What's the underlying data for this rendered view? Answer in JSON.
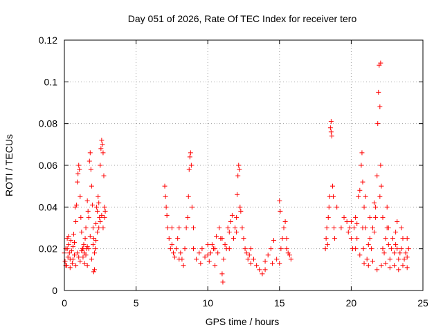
{
  "chart_data": {
    "type": "scatter",
    "title": "Day 051 of 2026, Rate Of TEC Index for receiver tero",
    "xlabel": "GPS time / hours",
    "ylabel": "ROTI / TECUs",
    "xlim": [
      0,
      25
    ],
    "ylim": [
      0,
      0.12
    ],
    "x_ticks": [
      "0",
      "5",
      "10",
      "15",
      "20",
      "25"
    ],
    "y_ticks": [
      "0",
      "0.02",
      "0.04",
      "0.06",
      "0.08",
      "0.1",
      "0.12"
    ],
    "grid": true,
    "legend": "none",
    "marker": "+",
    "color": "#ff0000",
    "series": [
      {
        "values": [
          [
            0.0,
            0.018
          ],
          [
            0.05,
            0.014
          ],
          [
            0.1,
            0.02
          ],
          [
            0.15,
            0.012
          ],
          [
            0.2,
            0.025
          ],
          [
            0.25,
            0.016
          ],
          [
            0.3,
            0.022
          ],
          [
            0.35,
            0.018
          ],
          [
            0.4,
            0.015
          ],
          [
            0.45,
            0.024
          ],
          [
            0.5,
            0.019
          ],
          [
            0.55,
            0.013
          ],
          [
            0.6,
            0.021
          ],
          [
            0.65,
            0.027
          ],
          [
            0.7,
            0.017
          ],
          [
            0.75,
            0.04
          ],
          [
            0.8,
            0.033
          ],
          [
            0.85,
            0.041
          ],
          [
            0.9,
            0.052
          ],
          [
            0.95,
            0.056
          ],
          [
            1.0,
            0.06
          ],
          [
            1.05,
            0.058
          ],
          [
            1.1,
            0.045
          ],
          [
            1.15,
            0.035
          ],
          [
            1.2,
            0.028
          ],
          [
            1.25,
            0.02
          ],
          [
            1.3,
            0.016
          ],
          [
            1.35,
            0.022
          ],
          [
            1.4,
            0.018
          ],
          [
            1.45,
            0.025
          ],
          [
            1.5,
            0.03
          ],
          [
            1.55,
            0.02
          ],
          [
            1.6,
            0.043
          ],
          [
            1.65,
            0.038
          ],
          [
            1.7,
            0.035
          ],
          [
            1.75,
            0.062
          ],
          [
            1.8,
            0.066
          ],
          [
            1.85,
            0.058
          ],
          [
            1.9,
            0.05
          ],
          [
            1.95,
            0.041
          ],
          [
            2.0,
            0.03
          ],
          [
            2.05,
            0.025
          ],
          [
            2.1,
            0.01
          ],
          [
            2.15,
            0.02
          ],
          [
            2.2,
            0.032
          ],
          [
            2.25,
            0.04
          ],
          [
            2.3,
            0.038
          ],
          [
            2.35,
            0.045
          ],
          [
            2.4,
            0.042
          ],
          [
            2.45,
            0.035
          ],
          [
            2.5,
            0.06
          ],
          [
            2.55,
            0.068
          ],
          [
            2.6,
            0.072
          ],
          [
            2.65,
            0.07
          ],
          [
            2.7,
            0.066
          ],
          [
            2.75,
            0.055
          ],
          [
            2.8,
            0.04
          ],
          [
            2.85,
            0.038
          ],
          [
            0.1,
            0.012
          ],
          [
            0.3,
            0.026
          ],
          [
            0.6,
            0.015
          ],
          [
            0.9,
            0.018
          ],
          [
            1.1,
            0.014
          ],
          [
            1.3,
            0.02
          ],
          [
            1.5,
            0.017
          ],
          [
            1.7,
            0.02
          ],
          [
            1.9,
            0.015
          ],
          [
            2.1,
            0.018
          ],
          [
            2.3,
            0.028
          ],
          [
            2.5,
            0.033
          ],
          [
            2.7,
            0.03
          ],
          [
            0.2,
            0.02
          ],
          [
            0.4,
            0.011
          ],
          [
            0.7,
            0.023
          ],
          [
            1.0,
            0.016
          ],
          [
            1.2,
            0.019
          ],
          [
            1.4,
            0.013
          ],
          [
            1.6,
            0.021
          ],
          [
            1.8,
            0.026
          ],
          [
            2.0,
            0.022
          ],
          [
            2.2,
            0.024
          ],
          [
            2.4,
            0.03
          ],
          [
            2.6,
            0.036
          ],
          [
            2.8,
            0.035
          ],
          [
            0.8,
            0.012
          ],
          [
            1.6,
            0.012
          ],
          [
            2.05,
            0.009
          ],
          [
            7.0,
            0.05
          ],
          [
            7.05,
            0.045
          ],
          [
            7.1,
            0.04
          ],
          [
            7.15,
            0.036
          ],
          [
            7.2,
            0.03
          ],
          [
            7.3,
            0.025
          ],
          [
            7.4,
            0.02
          ],
          [
            7.5,
            0.022
          ],
          [
            7.6,
            0.018
          ],
          [
            7.7,
            0.016
          ],
          [
            7.8,
            0.02
          ],
          [
            7.9,
            0.025
          ],
          [
            8.0,
            0.03
          ],
          [
            8.1,
            0.018
          ],
          [
            8.2,
            0.015
          ],
          [
            8.3,
            0.012
          ],
          [
            8.4,
            0.02
          ],
          [
            8.5,
            0.03
          ],
          [
            8.6,
            0.035
          ],
          [
            8.65,
            0.045
          ],
          [
            8.7,
            0.058
          ],
          [
            8.75,
            0.064
          ],
          [
            8.8,
            0.066
          ],
          [
            8.85,
            0.06
          ],
          [
            8.9,
            0.04
          ],
          [
            9.0,
            0.02
          ],
          [
            9.2,
            0.015
          ],
          [
            9.4,
            0.018
          ],
          [
            9.6,
            0.02
          ],
          [
            9.8,
            0.016
          ],
          [
            10.0,
            0.017
          ],
          [
            10.1,
            0.014
          ],
          [
            10.2,
            0.018
          ],
          [
            10.3,
            0.022
          ],
          [
            10.4,
            0.02
          ],
          [
            10.5,
            0.012
          ],
          [
            10.6,
            0.026
          ],
          [
            10.7,
            0.018
          ],
          [
            10.8,
            0.03
          ],
          [
            10.9,
            0.025
          ],
          [
            11.0,
            0.008
          ],
          [
            11.05,
            0.004
          ],
          [
            11.1,
            0.015
          ],
          [
            11.2,
            0.022
          ],
          [
            11.3,
            0.02
          ],
          [
            11.4,
            0.03
          ],
          [
            11.5,
            0.028
          ],
          [
            11.6,
            0.033
          ],
          [
            11.7,
            0.036
          ],
          [
            11.8,
            0.025
          ],
          [
            11.9,
            0.03
          ],
          [
            12.0,
            0.035
          ],
          [
            12.05,
            0.046
          ],
          [
            12.1,
            0.055
          ],
          [
            12.15,
            0.06
          ],
          [
            12.2,
            0.058
          ],
          [
            12.25,
            0.04
          ],
          [
            12.3,
            0.038
          ],
          [
            12.4,
            0.03
          ],
          [
            12.5,
            0.025
          ],
          [
            12.6,
            0.02
          ],
          [
            12.7,
            0.018
          ],
          [
            12.8,
            0.015
          ],
          [
            12.9,
            0.017
          ],
          [
            13.0,
            0.013
          ],
          [
            13.2,
            0.015
          ],
          [
            13.4,
            0.012
          ],
          [
            13.6,
            0.01
          ],
          [
            13.8,
            0.008
          ],
          [
            14.0,
            0.014
          ],
          [
            14.2,
            0.017
          ],
          [
            14.4,
            0.02
          ],
          [
            14.6,
            0.024
          ],
          [
            14.8,
            0.015
          ],
          [
            15.0,
            0.013
          ],
          [
            15.1,
            0.02
          ],
          [
            15.2,
            0.025
          ],
          [
            15.3,
            0.03
          ],
          [
            15.4,
            0.033
          ],
          [
            15.5,
            0.02
          ],
          [
            15.6,
            0.018
          ],
          [
            15.7,
            0.017
          ],
          [
            15.8,
            0.015
          ],
          [
            15.0,
            0.043
          ],
          [
            15.05,
            0.038
          ],
          [
            7.5,
            0.03
          ],
          [
            8.0,
            0.015
          ],
          [
            9.0,
            0.03
          ],
          [
            9.5,
            0.013
          ],
          [
            10.0,
            0.022
          ],
          [
            10.5,
            0.02
          ],
          [
            11.0,
            0.025
          ],
          [
            11.5,
            0.02
          ],
          [
            12.0,
            0.028
          ],
          [
            13.0,
            0.02
          ],
          [
            14.0,
            0.01
          ],
          [
            14.5,
            0.013
          ],
          [
            15.5,
            0.025
          ],
          [
            18.2,
            0.02
          ],
          [
            18.25,
            0.025
          ],
          [
            18.3,
            0.03
          ],
          [
            18.35,
            0.022
          ],
          [
            18.4,
            0.035
          ],
          [
            18.45,
            0.04
          ],
          [
            18.5,
            0.045
          ],
          [
            18.55,
            0.078
          ],
          [
            18.6,
            0.081
          ],
          [
            18.65,
            0.074
          ],
          [
            18.7,
            0.05
          ],
          [
            18.75,
            0.045
          ],
          [
            18.8,
            0.03
          ],
          [
            18.85,
            0.025
          ],
          [
            19.0,
            0.04
          ],
          [
            19.3,
            0.03
          ],
          [
            19.5,
            0.035
          ],
          [
            19.7,
            0.033
          ],
          [
            19.8,
            0.028
          ],
          [
            19.9,
            0.03
          ],
          [
            20.0,
            0.025
          ],
          [
            20.1,
            0.02
          ],
          [
            20.2,
            0.03
          ],
          [
            20.3,
            0.035
          ],
          [
            20.4,
            0.032
          ],
          [
            20.5,
            0.045
          ],
          [
            20.6,
            0.048
          ],
          [
            20.7,
            0.06
          ],
          [
            20.75,
            0.066
          ],
          [
            20.8,
            0.052
          ],
          [
            20.85,
            0.02
          ],
          [
            20.9,
            0.04
          ],
          [
            21.0,
            0.03
          ],
          [
            21.1,
            0.015
          ],
          [
            21.2,
            0.022
          ],
          [
            21.3,
            0.025
          ],
          [
            21.4,
            0.02
          ],
          [
            21.5,
            0.03
          ],
          [
            21.6,
            0.028
          ],
          [
            21.7,
            0.035
          ],
          [
            21.8,
            0.055
          ],
          [
            21.85,
            0.08
          ],
          [
            21.9,
            0.095
          ],
          [
            21.95,
            0.108
          ],
          [
            22.0,
            0.088
          ],
          [
            22.05,
            0.06
          ],
          [
            22.1,
            0.05
          ],
          [
            22.2,
            0.02
          ],
          [
            22.3,
            0.018
          ],
          [
            22.4,
            0.025
          ],
          [
            22.5,
            0.03
          ],
          [
            22.6,
            0.022
          ],
          [
            22.7,
            0.015
          ],
          [
            22.8,
            0.02
          ],
          [
            22.9,
            0.025
          ],
          [
            23.0,
            0.018
          ],
          [
            23.1,
            0.022
          ],
          [
            23.2,
            0.02
          ],
          [
            23.3,
            0.015
          ],
          [
            23.4,
            0.018
          ],
          [
            23.5,
            0.02
          ],
          [
            23.6,
            0.025
          ],
          [
            23.7,
            0.015
          ],
          [
            23.8,
            0.018
          ],
          [
            23.9,
            0.016
          ],
          [
            24.0,
            0.02
          ],
          [
            20.3,
            0.02
          ],
          [
            20.6,
            0.017
          ],
          [
            20.9,
            0.013
          ],
          [
            21.2,
            0.012
          ],
          [
            21.5,
            0.014
          ],
          [
            21.8,
            0.01
          ],
          [
            22.1,
            0.012
          ],
          [
            22.4,
            0.013
          ],
          [
            22.7,
            0.011
          ],
          [
            23.0,
            0.012
          ],
          [
            23.3,
            0.01
          ],
          [
            23.6,
            0.012
          ],
          [
            23.9,
            0.011
          ],
          [
            20.0,
            0.033
          ],
          [
            20.4,
            0.025
          ],
          [
            20.8,
            0.03
          ],
          [
            21.3,
            0.035
          ],
          [
            21.7,
            0.04
          ],
          [
            22.2,
            0.035
          ],
          [
            22.6,
            0.03
          ],
          [
            23.1,
            0.028
          ],
          [
            23.5,
            0.03
          ],
          [
            23.9,
            0.025
          ],
          [
            21.0,
            0.045
          ],
          [
            21.6,
            0.042
          ],
          [
            22.0,
            0.045
          ],
          [
            22.5,
            0.04
          ],
          [
            23.2,
            0.033
          ],
          [
            18.6,
            0.076
          ],
          [
            22.05,
            0.109
          ]
        ]
      }
    ]
  }
}
